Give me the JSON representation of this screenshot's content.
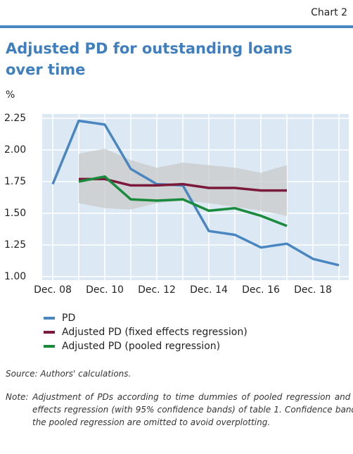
{
  "chart_label": "Chart 2",
  "chart_data": {
    "type": "line",
    "title": "Adjusted PD for outstanding loans over time",
    "y_unit": "%",
    "categories": [
      "Dec. 08",
      null,
      "Dec. 10",
      null,
      "Dec. 12",
      null,
      "Dec. 14",
      null,
      "Dec. 16",
      null,
      "Dec. 18",
      null
    ],
    "series": [
      {
        "name": "PD",
        "color": "#4a86c0",
        "values": [
          1.73,
          2.23,
          2.2,
          1.85,
          1.73,
          1.72,
          1.36,
          1.33,
          1.23,
          1.26,
          1.14,
          1.09
        ]
      },
      {
        "name": "Adjusted PD (fixed effects regression)",
        "color": "#7b1a3a",
        "values": [
          null,
          1.77,
          1.77,
          1.72,
          1.72,
          1.73,
          1.7,
          1.7,
          1.68,
          1.68,
          null,
          null
        ]
      },
      {
        "name": "Adjusted PD (pooled regression)",
        "color": "#1a8a3c",
        "values": [
          null,
          1.75,
          1.79,
          1.61,
          1.6,
          1.61,
          1.52,
          1.54,
          1.48,
          1.4,
          null,
          null
        ]
      }
    ],
    "band": {
      "color": "#c9c9c9",
      "upper": [
        null,
        1.97,
        2.01,
        1.92,
        1.86,
        1.9,
        1.88,
        1.86,
        1.82,
        1.88,
        null,
        null
      ],
      "lower": [
        null,
        1.58,
        1.54,
        1.53,
        1.58,
        1.6,
        1.58,
        1.55,
        1.52,
        1.48,
        null,
        null
      ]
    },
    "ylim": [
      1.0,
      2.25
    ],
    "yticks": [
      {
        "value": 1.0,
        "label": "1.00"
      },
      {
        "value": 1.25,
        "label": "1.25"
      },
      {
        "value": 1.5,
        "label": "1.50"
      },
      {
        "value": 1.75,
        "label": "1.75"
      },
      {
        "value": 2.0,
        "label": "2.00"
      },
      {
        "value": 2.25,
        "label": "2.25"
      }
    ],
    "grid": true
  },
  "source": "Source: Authors' calculations.",
  "note_label": "Note:",
  "note": "Adjustment of PDs according to time dummies of pooled regression and fixed effects regression (with 95% confidence bands) of table 1. Confidence bands for the pooled regression are omitted to avoid overplotting."
}
